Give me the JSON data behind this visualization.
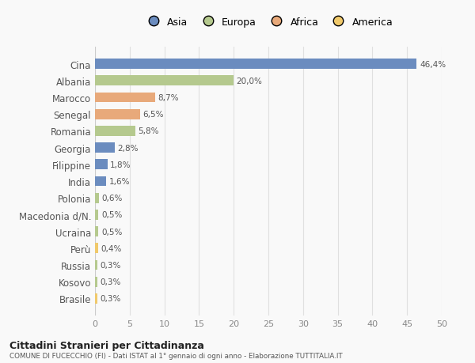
{
  "categories": [
    "Cina",
    "Albania",
    "Marocco",
    "Senegal",
    "Romania",
    "Georgia",
    "Filippine",
    "India",
    "Polonia",
    "Macedonia d/N.",
    "Ucraina",
    "Perù",
    "Russia",
    "Kosovo",
    "Brasile"
  ],
  "values": [
    46.4,
    20.0,
    8.7,
    6.5,
    5.8,
    2.8,
    1.8,
    1.6,
    0.6,
    0.5,
    0.5,
    0.4,
    0.3,
    0.3,
    0.3
  ],
  "labels": [
    "46,4%",
    "20,0%",
    "8,7%",
    "6,5%",
    "5,8%",
    "2,8%",
    "1,8%",
    "1,6%",
    "0,6%",
    "0,5%",
    "0,5%",
    "0,4%",
    "0,3%",
    "0,3%",
    "0,3%"
  ],
  "colors": [
    "#6b8cbf",
    "#b5c98e",
    "#e8a97a",
    "#e8a97a",
    "#b5c98e",
    "#6b8cbf",
    "#6b8cbf",
    "#6b8cbf",
    "#b5c98e",
    "#b5c98e",
    "#b5c98e",
    "#f0c96b",
    "#b5c98e",
    "#b5c98e",
    "#f0c96b"
  ],
  "legend_labels": [
    "Asia",
    "Europa",
    "Africa",
    "America"
  ],
  "legend_colors": [
    "#6b8cbf",
    "#b5c98e",
    "#e8a97a",
    "#f0c96b"
  ],
  "title1": "Cittadini Stranieri per Cittadinanza",
  "title2": "COMUNE DI FUCECCHIO (FI) - Dati ISTAT al 1° gennaio di ogni anno - Elaborazione TUTTITALIA.IT",
  "xlim": [
    0,
    50
  ],
  "xticks": [
    0,
    5,
    10,
    15,
    20,
    25,
    30,
    35,
    40,
    45,
    50
  ],
  "background_color": "#f9f9f9",
  "grid_color": "#e0e0e0",
  "bar_height": 0.6
}
